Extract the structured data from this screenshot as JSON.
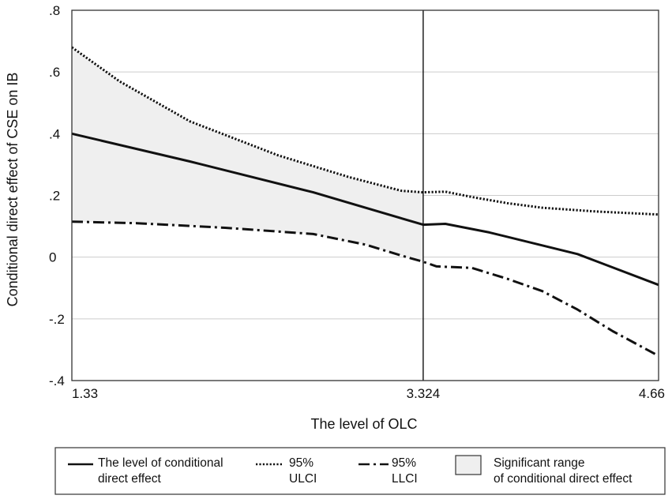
{
  "chart_data": {
    "type": "line",
    "xlabel": "The level of OLC",
    "ylabel": "Conditional direct  effect of CSE on IB",
    "xlim": [
      1.33,
      4.66
    ],
    "ylim": [
      -0.4,
      0.8
    ],
    "x_ticks": [
      "1.33",
      "3.324",
      "4.66"
    ],
    "x_tick_values": [
      1.33,
      3.324,
      4.66
    ],
    "y_ticks": [
      ".8",
      ".6",
      ".4",
      ".2",
      "0",
      "-.2",
      "-.4"
    ],
    "y_tick_values": [
      0.8,
      0.6,
      0.4,
      0.2,
      0,
      -0.2,
      -0.4
    ],
    "grid": "horizontal",
    "vertical_reference_x": 3.324,
    "series": [
      {
        "name": "The level of conditional direct effect",
        "style": "solid",
        "x": [
          1.33,
          2.0,
          2.7,
          3.324,
          3.45,
          3.7,
          4.2,
          4.66
        ],
        "values": [
          0.4,
          0.31,
          0.21,
          0.105,
          0.108,
          0.08,
          0.01,
          -0.09
        ]
      },
      {
        "name": "95% ULCI",
        "style": "dotted",
        "x": [
          1.33,
          1.6,
          2.0,
          2.5,
          2.9,
          3.2,
          3.324,
          3.45,
          3.6,
          3.8,
          4.0,
          4.3,
          4.66
        ],
        "values": [
          0.68,
          0.57,
          0.44,
          0.33,
          0.26,
          0.215,
          0.21,
          0.212,
          0.195,
          0.175,
          0.16,
          0.148,
          0.138
        ]
      },
      {
        "name": "95% LLCI",
        "style": "dashdot",
        "x": [
          1.33,
          1.7,
          2.2,
          2.7,
          3.0,
          3.2,
          3.324,
          3.4,
          3.6,
          3.8,
          4.0,
          4.2,
          4.4,
          4.66
        ],
        "values": [
          0.115,
          0.11,
          0.095,
          0.075,
          0.04,
          0.005,
          -0.015,
          -0.03,
          -0.035,
          -0.07,
          -0.11,
          -0.17,
          -0.24,
          -0.32
        ]
      }
    ],
    "shaded_region": {
      "name": "Significant range of conditional direct effect",
      "x_range": [
        1.33,
        3.324
      ]
    },
    "legend": {
      "placement": "bottom",
      "items": [
        {
          "style": "solid",
          "line1": "The level of conditional",
          "line2": "direct effect"
        },
        {
          "style": "dotted",
          "line1": "95%",
          "line2": "ULCI"
        },
        {
          "style": "dashdot",
          "line1": "95%",
          "line2": "LLCI"
        },
        {
          "style": "box",
          "line1": "Significant range",
          "line2": "of conditional direct effect"
        }
      ]
    },
    "colors": {
      "line": "#111111",
      "shade": "#efefef",
      "grid": "#cccccc",
      "frame": "#333333"
    }
  }
}
